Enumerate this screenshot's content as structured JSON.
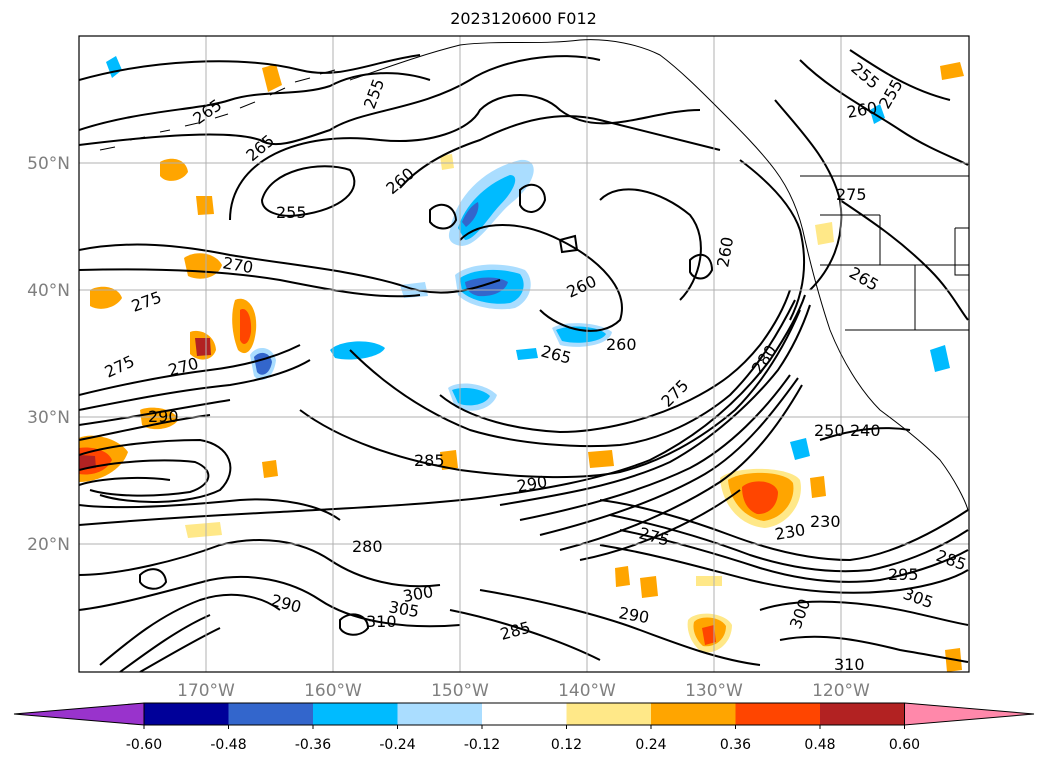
{
  "title": "2023120600 F012",
  "map": {
    "lat_labels": [
      "50°N",
      "40°N",
      "30°N",
      "20°N"
    ],
    "lon_labels": [
      "170°W",
      "160°W",
      "150°W",
      "140°W",
      "130°W",
      "120°W"
    ],
    "gridlines": true,
    "contour_labels": [
      {
        "text": "265"
      },
      {
        "text": "265"
      },
      {
        "text": "255"
      },
      {
        "text": "255"
      },
      {
        "text": "260"
      },
      {
        "text": "270"
      },
      {
        "text": "275"
      },
      {
        "text": "275"
      },
      {
        "text": "270"
      },
      {
        "text": "265"
      },
      {
        "text": "260"
      },
      {
        "text": "260"
      },
      {
        "text": "260"
      },
      {
        "text": "255"
      },
      {
        "text": "255"
      },
      {
        "text": "260"
      },
      {
        "text": "275"
      },
      {
        "text": "265"
      },
      {
        "text": "275"
      },
      {
        "text": "280"
      },
      {
        "text": "290"
      },
      {
        "text": "285"
      },
      {
        "text": "290"
      },
      {
        "text": "275"
      },
      {
        "text": "230"
      },
      {
        "text": "230"
      },
      {
        "text": "250"
      },
      {
        "text": "240"
      },
      {
        "text": "280"
      },
      {
        "text": "290"
      },
      {
        "text": "305"
      },
      {
        "text": "300"
      },
      {
        "text": "310"
      },
      {
        "text": "290"
      },
      {
        "text": "285"
      },
      {
        "text": "300"
      },
      {
        "text": "295"
      },
      {
        "text": "305"
      },
      {
        "text": "310"
      },
      {
        "text": "285"
      }
    ]
  },
  "colorbar": {
    "tick_labels": [
      "-0.60",
      "-0.48",
      "-0.36",
      "-0.24",
      "-0.12",
      "0.12",
      "0.24",
      "0.36",
      "0.48",
      "0.60"
    ],
    "colors": [
      "#9933cc",
      "#000099",
      "#3366cc",
      "#00bbff",
      "#aaddff",
      "#ffffff",
      "#ffe888",
      "#ffa500",
      "#ff4500",
      "#b22222",
      "#ff88aa"
    ]
  }
}
